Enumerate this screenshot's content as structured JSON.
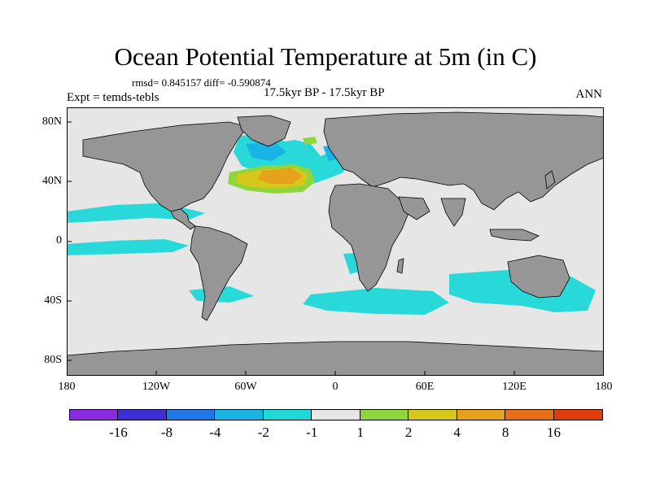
{
  "title": "Ocean Potential Temperature at 5m (in C)",
  "stats": "rmsd= 0.845157 diff= -0.590874",
  "period": "17.5kyr BP - 17.5kyr BP",
  "experiment": "Expt = temds-tebls",
  "season": "ANN",
  "lat_labels": [
    "80N",
    "40N",
    "0",
    "40S",
    "80S"
  ],
  "lon_labels": [
    "180",
    "120W",
    "60W",
    "0",
    "60E",
    "120E",
    "180"
  ],
  "colorbar": {
    "colors": [
      "#8a2be2",
      "#3c2fd6",
      "#1f78e8",
      "#19b4e6",
      "#1fd8d8",
      "#e6e6e6",
      "#8fd63c",
      "#d6c81a",
      "#e6a21a",
      "#e6701a",
      "#e03c10"
    ],
    "labels": [
      "-16",
      "-8",
      "-4",
      "-2",
      "-1",
      "1",
      "2",
      "4",
      "8",
      "16"
    ]
  },
  "colors": {
    "land": "#969696",
    "ocean": "#e6e6e6",
    "frame": "#000000"
  }
}
